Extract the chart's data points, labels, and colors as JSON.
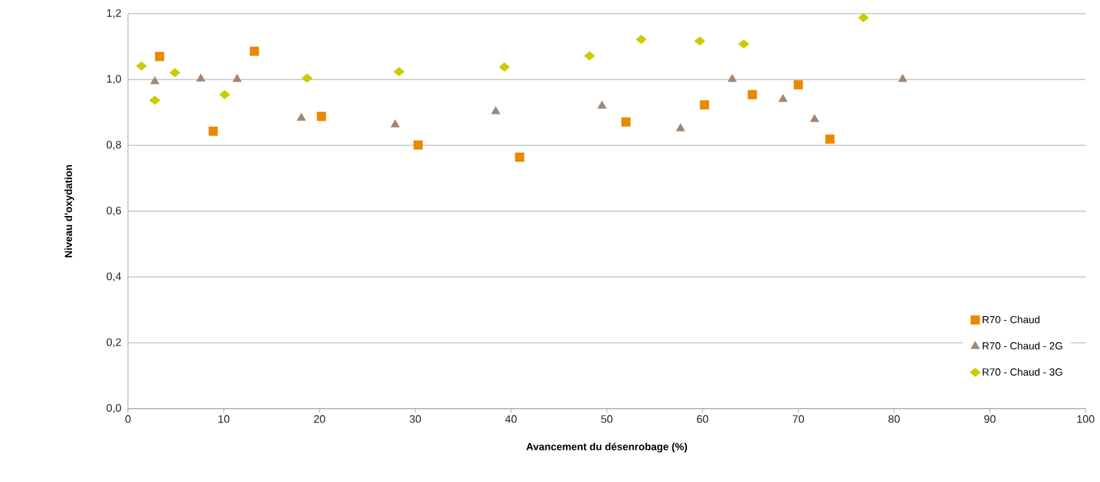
{
  "chart_data": {
    "type": "scatter",
    "xlabel": "Avancement du désenrobage (%)",
    "ylabel": "Niveau d'oxydation",
    "xlim": [
      0,
      100
    ],
    "xticks": [
      0,
      10,
      20,
      30,
      40,
      50,
      60,
      70,
      80,
      90,
      100
    ],
    "ylim": [
      0,
      1.2
    ],
    "yticks": [
      {
        "value": 0,
        "label": "0,0"
      },
      {
        "value": 0.2,
        "label": "0,2"
      },
      {
        "value": 0.4,
        "label": "0,4"
      },
      {
        "value": 0.6,
        "label": "0,6"
      },
      {
        "value": 0.8,
        "label": "0,8"
      },
      {
        "value": 1.0,
        "label": "1,0"
      },
      {
        "value": 1.2,
        "label": "1,2"
      }
    ],
    "grid": "y",
    "legend": "bottom right",
    "series": [
      {
        "name": "R70 - Chaud",
        "color": "#ea8800",
        "marker": "square",
        "x": [
          3.3,
          8.9,
          13.2,
          20.2,
          30.3,
          40.9,
          52.0,
          60.2,
          65.2,
          70.0,
          73.3
        ],
        "values": [
          1.07,
          0.843,
          1.086,
          0.888,
          0.801,
          0.764,
          0.871,
          0.923,
          0.954,
          0.984,
          0.819
        ]
      },
      {
        "name": "R70 - Chaud - 2G",
        "color": "#a38672",
        "marker": "triangle",
        "x": [
          2.8,
          7.6,
          11.4,
          18.1,
          27.9,
          38.4,
          49.5,
          57.7,
          63.1,
          68.4,
          71.7,
          80.9
        ],
        "values": [
          0.994,
          1.002,
          1.001,
          0.883,
          0.863,
          0.903,
          0.92,
          0.851,
          1.001,
          0.94,
          0.879,
          1.001
        ]
      },
      {
        "name": "R70 - Chaud - 3G",
        "color": "#c8cc00",
        "marker": "diamond",
        "x": [
          1.4,
          2.8,
          4.9,
          10.1,
          18.7,
          28.3,
          39.3,
          48.2,
          53.6,
          59.7,
          64.3,
          76.8
        ],
        "values": [
          1.041,
          0.937,
          1.021,
          0.954,
          1.004,
          1.024,
          1.038,
          1.072,
          1.122,
          1.117,
          1.108,
          1.188
        ]
      }
    ]
  }
}
